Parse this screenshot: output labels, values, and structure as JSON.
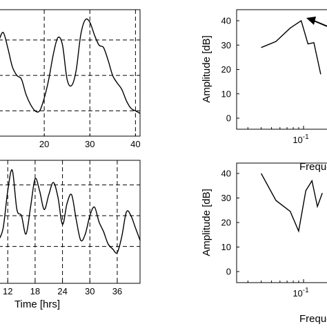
{
  "chart_data": [
    {
      "type": "line",
      "panel": "top-left",
      "xlabel": "",
      "ylabel": "",
      "xlim": [
        10,
        41
      ],
      "ylim": [
        0,
        1
      ],
      "grid": "dashed",
      "xticks": [
        {
          "v": 20,
          "label": "20"
        },
        {
          "v": 30,
          "label": "30"
        },
        {
          "v": 40,
          "label": "40"
        }
      ],
      "ygrid": [
        0.2,
        0.48,
        0.76
      ],
      "series": [
        {
          "x": [
            10,
            11,
            12,
            13,
            14,
            15,
            16,
            17,
            18,
            19,
            20,
            21,
            22,
            23,
            24,
            25,
            26,
            27,
            28,
            29,
            30,
            31,
            32,
            33,
            34,
            35,
            36,
            37,
            38,
            39,
            40,
            41
          ],
          "y": [
            0.75,
            0.82,
            0.7,
            0.55,
            0.48,
            0.45,
            0.33,
            0.25,
            0.2,
            0.2,
            0.3,
            0.45,
            0.65,
            0.78,
            0.72,
            0.45,
            0.4,
            0.52,
            0.8,
            0.92,
            0.9,
            0.8,
            0.72,
            0.7,
            0.6,
            0.48,
            0.42,
            0.37,
            0.28,
            0.22,
            0.2,
            0.18
          ]
        }
      ]
    },
    {
      "type": "line",
      "panel": "bottom-left",
      "xlabel": "Time [hrs]",
      "ylabel": "",
      "xlim": [
        10,
        41
      ],
      "ylim": [
        0,
        1
      ],
      "grid": "dashed",
      "xticks": [
        {
          "v": 12,
          "label": "12"
        },
        {
          "v": 18,
          "label": "18"
        },
        {
          "v": 24,
          "label": "24"
        },
        {
          "v": 30,
          "label": "30"
        },
        {
          "v": 36,
          "label": "36"
        }
      ],
      "ygrid": [
        0.3,
        0.55,
        0.8
      ],
      "series": [
        {
          "x": [
            10,
            11,
            12,
            13,
            14,
            15,
            16,
            17,
            18,
            19,
            20,
            21,
            22,
            23,
            24,
            25,
            26,
            27,
            28,
            29,
            30,
            31,
            32,
            33,
            34,
            35,
            36,
            37,
            38,
            39,
            40,
            41
          ],
          "y": [
            0.35,
            0.45,
            0.75,
            0.92,
            0.6,
            0.55,
            0.4,
            0.62,
            0.85,
            0.75,
            0.6,
            0.72,
            0.82,
            0.7,
            0.48,
            0.65,
            0.72,
            0.52,
            0.35,
            0.4,
            0.55,
            0.62,
            0.5,
            0.42,
            0.32,
            0.28,
            0.25,
            0.38,
            0.58,
            0.55,
            0.45,
            0.35
          ]
        }
      ]
    },
    {
      "type": "line",
      "panel": "top-right",
      "xlabel": "Frequer",
      "ylabel": "Amplitude [dB]",
      "xscale": "log",
      "ylim": [
        0,
        40
      ],
      "yticks": [
        0,
        10,
        20,
        30,
        40
      ],
      "xtick_label": {
        "base": "10",
        "exp": "-1",
        "value": 0.1
      },
      "annotation": "arrow pointing to peak",
      "series": [
        {
          "x": [
            0.04,
            0.055,
            0.075,
            0.095,
            0.11,
            0.125,
            0.145
          ],
          "y": [
            29,
            31.5,
            37,
            40,
            30.5,
            31,
            18
          ]
        }
      ]
    },
    {
      "type": "line",
      "panel": "bottom-right",
      "xlabel": "Frequer",
      "ylabel": "Amplitude [dB]",
      "xscale": "log",
      "ylim": [
        0,
        40
      ],
      "yticks": [
        0,
        10,
        20,
        30,
        40
      ],
      "xtick_label": {
        "base": "10",
        "exp": "-1",
        "value": 0.1
      },
      "series": [
        {
          "x": [
            0.04,
            0.055,
            0.075,
            0.09,
            0.105,
            0.12,
            0.135,
            0.15
          ],
          "y": [
            40,
            29,
            24.5,
            16.5,
            33,
            37,
            26.5,
            32
          ]
        }
      ]
    }
  ]
}
